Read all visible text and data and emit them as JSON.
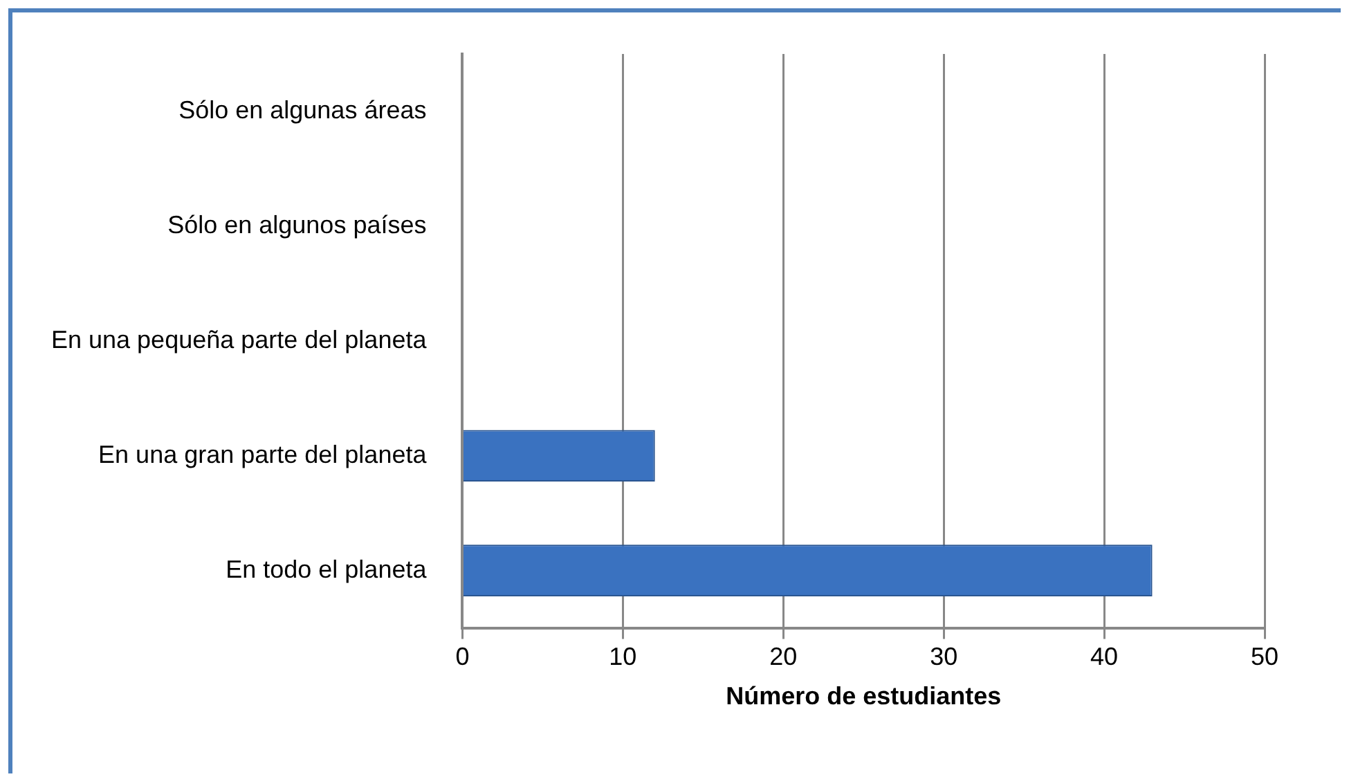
{
  "chart_data": {
    "type": "bar",
    "orientation": "horizontal",
    "categories": [
      "Sólo en algunas áreas",
      "Sólo en algunos países",
      "En una pequeña parte del planeta",
      "En una gran parte del planeta",
      "En todo el planeta"
    ],
    "values": [
      0,
      0,
      0,
      12,
      43
    ],
    "color": "#3a72c0",
    "xlabel": "Número de estudiantes",
    "xlim": [
      0,
      50
    ],
    "xticks": [
      0,
      10,
      20,
      30,
      40,
      50
    ],
    "grid": "x",
    "legend": false
  }
}
